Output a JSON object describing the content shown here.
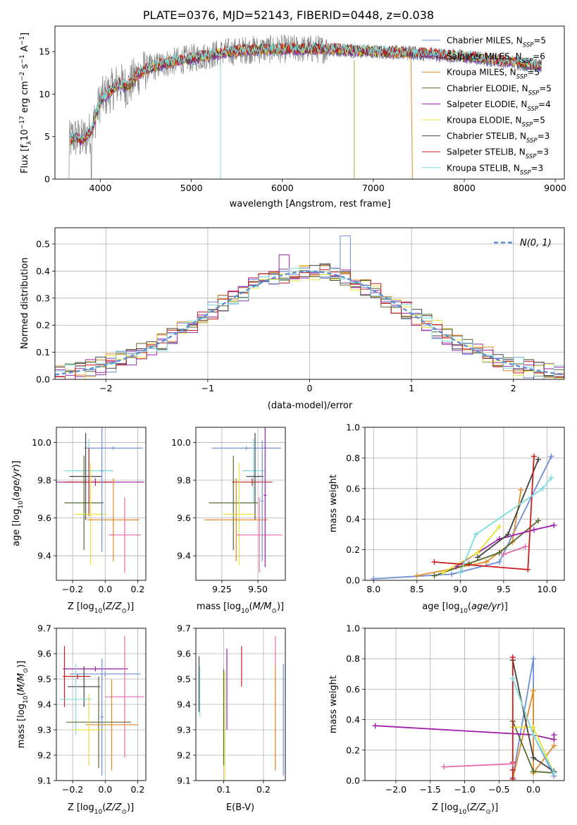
{
  "figure": {
    "title": "PLATE=0376, MJD=52143, FIBERID=0448, z=0.038"
  },
  "colors": {
    "model_colors": [
      "#6f8fd8",
      "#8a3aa8",
      "#e08a2a",
      "#556b2f",
      "#a020a8",
      "#e6e23a",
      "#444444",
      "#c81e1e",
      "#7fdcdc"
    ],
    "data": "#808080",
    "extra": "#e86aa8",
    "gauss": "#5b8fd8"
  },
  "chart_data": [
    {
      "id": "spectrum",
      "type": "line",
      "xlabel": "wavelength [Angstrom, rest frame]",
      "ylabel": "Flux [f_λ10^-17 erg cm^-2 s^-1 A^-1]",
      "xlim": [
        3500,
        9100
      ],
      "ylim": [
        0,
        18
      ],
      "xticks": [
        4000,
        5000,
        6000,
        7000,
        8000,
        9000
      ],
      "yticks": [
        0,
        5,
        10,
        15
      ],
      "grid": false,
      "legend": "top-right",
      "continuum": {
        "x": [
          3650,
          3700,
          3800,
          3900,
          4000,
          4100,
          4200,
          4300,
          4400,
          4500,
          4700,
          5000,
          5300,
          5600,
          6000,
          6500,
          7000,
          7500,
          8000,
          8500,
          8850
        ],
        "y": [
          4.2,
          5.0,
          4.6,
          5.6,
          9.3,
          10.2,
          11.3,
          10.8,
          12.2,
          12.9,
          13.6,
          14.2,
          14.8,
          15.2,
          15.3,
          15.3,
          15.0,
          14.8,
          14.4,
          13.8,
          13.3
        ]
      },
      "series": [
        {
          "name": "Chabrier MILES, N_SSP=5"
        },
        {
          "name": "Salpeter MILES, N_SSP=6"
        },
        {
          "name": "Kroupa MILES, N_SSP=5"
        },
        {
          "name": "Chabrier ELODIE, N_SSP=5"
        },
        {
          "name": "Salpeter ELODIE, N_SSP=4"
        },
        {
          "name": "Kroupa ELODIE, N_SSP=5"
        },
        {
          "name": "Chabrier STELIB, N_SSP=3"
        },
        {
          "name": "Salpeter STELIB, N_SSP=3"
        },
        {
          "name": "Kroupa STELIB, N_SSP=3"
        }
      ],
      "legend_entries": [
        {
          "pre": "Chabrier MILES, N",
          "sub": "SSP",
          "post": "=5"
        },
        {
          "pre": "Salpeter MILES, N",
          "sub": "SSP",
          "post": "=6"
        },
        {
          "pre": "Kroupa MILES, N",
          "sub": "SSP",
          "post": "=5"
        },
        {
          "pre": "Chabrier ELODIE, N",
          "sub": "SSP",
          "post": "=5"
        },
        {
          "pre": "Salpeter ELODIE, N",
          "sub": "SSP",
          "post": "=4"
        },
        {
          "pre": "Kroupa ELODIE, N",
          "sub": "SSP",
          "post": "=5"
        },
        {
          "pre": "Chabrier STELIB, N",
          "sub": "SSP",
          "post": "=3"
        },
        {
          "pre": "Salpeter STELIB, N",
          "sub": "SSP",
          "post": "=3"
        },
        {
          "pre": "Kroupa STELIB, N",
          "sub": "SSP",
          "post": "=3"
        }
      ]
    },
    {
      "id": "residuals",
      "type": "histogram",
      "xlabel": "(data-model)/error",
      "ylabel": "Normed distribution",
      "xlim": [
        -2.5,
        2.5
      ],
      "ylim": [
        0,
        0.56
      ],
      "xticks": [
        -2,
        -1,
        0,
        1,
        2
      ],
      "yticks": [
        0.0,
        0.1,
        0.2,
        0.3,
        0.4,
        0.5
      ],
      "grid": true,
      "legend": "top-right",
      "legend_label": "N(0, 1)",
      "bin_width": 0.1,
      "notable_peaks": [
        {
          "x": 0.35,
          "y": 0.53
        },
        {
          "x": -0.25,
          "y": 0.46
        }
      ]
    },
    {
      "id": "age_vs_Z",
      "type": "errorbar",
      "xlabel": "Z [log10(Z/Z_sun)]",
      "ylabel": "age [log10(age/yr)]",
      "xlim": [
        -0.3,
        0.25
      ],
      "ylim": [
        9.27,
        10.08
      ],
      "xticks": [
        -0.2,
        0.0,
        0.2
      ],
      "yticks": [
        9.4,
        9.6,
        9.8,
        10.0
      ],
      "grid": true,
      "points": [
        {
          "x": 0.05,
          "y": 9.97,
          "xerr": 0.18,
          "yerr": 0.01,
          "c": 0
        },
        {
          "x": -0.1,
          "y": 9.85,
          "xerr": 0.15,
          "yerr": 0.17,
          "c": 8
        },
        {
          "x": -0.12,
          "y": 9.82,
          "xerr": 0.1,
          "yerr": 0.23,
          "c": 6
        },
        {
          "x": -0.06,
          "y": 9.79,
          "xerr": 0.3,
          "yerr": 0.02,
          "c": 4
        },
        {
          "x": -0.1,
          "y": 9.79,
          "xerr": 0.15,
          "yerr": 0.18,
          "c": 7
        },
        {
          "x": -0.13,
          "y": 9.68,
          "xerr": 0.12,
          "yerr": 0.25,
          "c": 3
        },
        {
          "x": -0.09,
          "y": 9.62,
          "xerr": 0.1,
          "yerr": 0.27,
          "c": 5
        },
        {
          "x": 0.05,
          "y": 9.59,
          "xerr": 0.16,
          "yerr": 0.22,
          "c": 2
        },
        {
          "x": 0.12,
          "y": 9.51,
          "xerr": 0.1,
          "yerr": 0.2,
          "c": "extra"
        },
        {
          "x": -0.02,
          "y": 9.85,
          "xerr": 0.01,
          "yerr": 0.43,
          "c": 0
        }
      ]
    },
    {
      "id": "age_vs_mass",
      "type": "errorbar",
      "xlabel": "mass [log10(M/M_sun)]",
      "ylabel": "",
      "xlim": [
        9.07,
        9.69
      ],
      "ylim": [
        9.27,
        10.08
      ],
      "xticks": [
        9.25,
        9.5
      ],
      "yticks": [
        9.4,
        9.6,
        9.8,
        10.0
      ],
      "grid": true,
      "points": [
        {
          "x": 9.42,
          "y": 9.97,
          "xerr": 0.24,
          "yerr": 0.01,
          "c": 0
        },
        {
          "x": 9.47,
          "y": 9.85,
          "xerr": 0.08,
          "yerr": 0.17,
          "c": 8
        },
        {
          "x": 9.48,
          "y": 9.82,
          "xerr": 0.06,
          "yerr": 0.23,
          "c": 6
        },
        {
          "x": 9.46,
          "y": 9.79,
          "xerr": 0.14,
          "yerr": 0.02,
          "c": 7
        },
        {
          "x": 9.33,
          "y": 9.68,
          "xerr": 0.17,
          "yerr": 0.25,
          "c": 3
        },
        {
          "x": 9.37,
          "y": 9.62,
          "xerr": 0.11,
          "yerr": 0.27,
          "c": 5
        },
        {
          "x": 9.35,
          "y": 9.59,
          "xerr": 0.22,
          "yerr": 0.22,
          "c": 2
        },
        {
          "x": 9.51,
          "y": 9.51,
          "xerr": 0.16,
          "yerr": 0.2,
          "c": "extra"
        },
        {
          "x": 9.55,
          "y": 9.72,
          "xerr": 0.01,
          "yerr": 0.38,
          "c": 4
        },
        {
          "x": 9.53,
          "y": 9.69,
          "xerr": 0.01,
          "yerr": 0.32,
          "c": 0
        }
      ]
    },
    {
      "id": "weight_vs_age",
      "type": "line",
      "xlabel": "age [log10(age/yr)]",
      "ylabel": "mass weight",
      "xlim": [
        7.9,
        10.2
      ],
      "ylim": [
        0,
        1.0
      ],
      "xticks": [
        8.0,
        8.5,
        9.0,
        9.5,
        10.0
      ],
      "yticks": [
        0.0,
        0.2,
        0.4,
        0.6,
        0.8,
        1.0
      ],
      "grid": true,
      "series": [
        {
          "c": 0,
          "x": [
            8.0,
            8.9,
            9.45,
            10.05
          ],
          "y": [
            0.01,
            0.04,
            0.12,
            0.81
          ]
        },
        {
          "c": 2,
          "x": [
            8.5,
            9.3,
            9.6,
            9.7
          ],
          "y": [
            0.03,
            0.12,
            0.25,
            0.59
          ]
        },
        {
          "c": 3,
          "x": [
            8.7,
            9.1,
            9.45,
            9.9
          ],
          "y": [
            0.03,
            0.11,
            0.18,
            0.39
          ]
        },
        {
          "c": 4,
          "x": [
            8.95,
            9.45,
            9.85,
            10.08
          ],
          "y": [
            0.09,
            0.27,
            0.33,
            0.36
          ]
        },
        {
          "c": 5,
          "x": [
            8.8,
            9.2,
            9.45
          ],
          "y": [
            0.05,
            0.18,
            0.35
          ]
        },
        {
          "c": 6,
          "x": [
            9.2,
            9.55,
            9.9
          ],
          "y": [
            0.15,
            0.3,
            0.79
          ]
        },
        {
          "c": 7,
          "x": [
            8.7,
            9.78,
            9.85
          ],
          "y": [
            0.12,
            0.07,
            0.81
          ]
        },
        {
          "c": 8,
          "x": [
            9.0,
            9.18,
            9.95,
            10.05
          ],
          "y": [
            0.05,
            0.3,
            0.6,
            0.67
          ]
        },
        {
          "c": "extra",
          "x": [
            9.5,
            9.75
          ],
          "y": [
            0.17,
            0.22
          ]
        }
      ]
    },
    {
      "id": "mass_vs_Z",
      "type": "errorbar",
      "xlabel": "Z [log10(Z/Z_sun)]",
      "ylabel": "mass [log10(M/M_sun)]",
      "xlim": [
        -0.3,
        0.25
      ],
      "ylim": [
        9.1,
        9.7
      ],
      "xticks": [
        -0.2,
        0.0,
        0.2
      ],
      "yticks": [
        9.1,
        9.2,
        9.3,
        9.4,
        9.5,
        9.6,
        9.7
      ],
      "grid": true,
      "points": [
        {
          "x": -0.25,
          "y": 9.51,
          "xerr": 0.01,
          "yerr": 0.12,
          "c": 7
        },
        {
          "x": -0.17,
          "y": 9.51,
          "xerr": 0.08,
          "yerr": 0.01,
          "c": 7
        },
        {
          "x": -0.06,
          "y": 9.54,
          "xerr": 0.2,
          "yerr": 0.01,
          "c": 4
        },
        {
          "x": 0.0,
          "y": 9.52,
          "xerr": 0.22,
          "yerr": 0.01,
          "c": 0
        },
        {
          "x": -0.13,
          "y": 9.47,
          "xerr": 0.1,
          "yerr": 0.08,
          "c": 6
        },
        {
          "x": -0.18,
          "y": 9.42,
          "xerr": 0.1,
          "yerr": 0.14,
          "c": 8
        },
        {
          "x": 0.12,
          "y": 9.43,
          "xerr": 0.12,
          "yerr": 0.24,
          "c": "extra"
        },
        {
          "x": -0.04,
          "y": 9.33,
          "xerr": 0.2,
          "yerr": 0.18,
          "c": 3
        },
        {
          "x": 0.04,
          "y": 9.32,
          "xerr": 0.16,
          "yerr": 0.18,
          "c": 2
        },
        {
          "x": -0.1,
          "y": 9.3,
          "xerr": 0.1,
          "yerr": 0.14,
          "c": 5
        },
        {
          "x": -0.02,
          "y": 9.35,
          "xerr": 0.01,
          "yerr": 0.23,
          "c": 0
        }
      ]
    },
    {
      "id": "mass_vs_ebv",
      "type": "errorbar",
      "xlabel": "E(B-V)",
      "ylabel": "",
      "xlim": [
        0.03,
        0.255
      ],
      "ylim": [
        9.1,
        9.7
      ],
      "xticks": [
        0.1,
        0.2
      ],
      "yticks": [
        9.1,
        9.2,
        9.3,
        9.4,
        9.5,
        9.6,
        9.7
      ],
      "grid": true,
      "points": [
        {
          "x": 0.038,
          "y": 9.48,
          "yerr": 0.11,
          "c": 6
        },
        {
          "x": 0.04,
          "y": 9.45,
          "yerr": 0.1,
          "c": 8
        },
        {
          "x": 0.1,
          "y": 9.35,
          "yerr": 0.19,
          "c": 3
        },
        {
          "x": 0.103,
          "y": 9.31,
          "yerr": 0.22,
          "c": 5
        },
        {
          "x": 0.108,
          "y": 9.46,
          "yerr": 0.16,
          "c": 4
        },
        {
          "x": 0.145,
          "y": 9.55,
          "yerr": 0.08,
          "c": 7
        },
        {
          "x": 0.23,
          "y": 9.41,
          "yerr": 0.26,
          "c": "extra"
        },
        {
          "x": 0.23,
          "y": 9.35,
          "yerr": 0.21,
          "c": 2
        },
        {
          "x": 0.25,
          "y": 9.34,
          "yerr": 0.22,
          "c": 0
        }
      ]
    },
    {
      "id": "weight_vs_Z",
      "type": "line",
      "xlabel": "Z [log10(Z/Z_sun)]",
      "ylabel": "mass weight",
      "xlim": [
        -2.45,
        0.45
      ],
      "ylim": [
        0,
        1.0
      ],
      "xticks": [
        -2.0,
        -1.5,
        -1.0,
        -0.5,
        0.0
      ],
      "yticks": [
        0.0,
        0.2,
        0.4,
        0.6,
        0.8,
        1.0
      ],
      "grid": true,
      "series": [
        {
          "c": 0,
          "x": [
            0.3,
            0.0,
            0.0,
            -0.3
          ],
          "y": [
            0.03,
            0.3,
            0.8,
            0.02
          ]
        },
        {
          "c": 2,
          "x": [
            0.3,
            0.0,
            0.0,
            -0.3
          ],
          "y": [
            0.23,
            0.05,
            0.59,
            0.01
          ]
        },
        {
          "c": 3,
          "x": [
            -0.3,
            0.0,
            0.3
          ],
          "y": [
            0.39,
            0.06,
            0.05
          ]
        },
        {
          "c": 4,
          "x": [
            -2.3,
            0.0,
            0.3,
            0.3
          ],
          "y": [
            0.36,
            0.3,
            0.27,
            0.3
          ]
        },
        {
          "c": 5,
          "x": [
            -0.3,
            0.0,
            0.3
          ],
          "y": [
            0.35,
            0.35,
            0.05
          ]
        },
        {
          "c": 6,
          "x": [
            -0.3,
            0.0,
            0.3
          ],
          "y": [
            0.79,
            0.15,
            0.06
          ]
        },
        {
          "c": 7,
          "x": [
            -0.3,
            -0.3,
            -0.3,
            -0.3
          ],
          "y": [
            0.81,
            0.12,
            0.07,
            0.01
          ]
        },
        {
          "c": 8,
          "x": [
            -0.3,
            0.0,
            0.3
          ],
          "y": [
            0.67,
            0.3,
            0.05
          ]
        },
        {
          "c": "extra",
          "x": [
            -1.3,
            -0.3
          ],
          "y": [
            0.09,
            0.11
          ]
        }
      ]
    }
  ]
}
